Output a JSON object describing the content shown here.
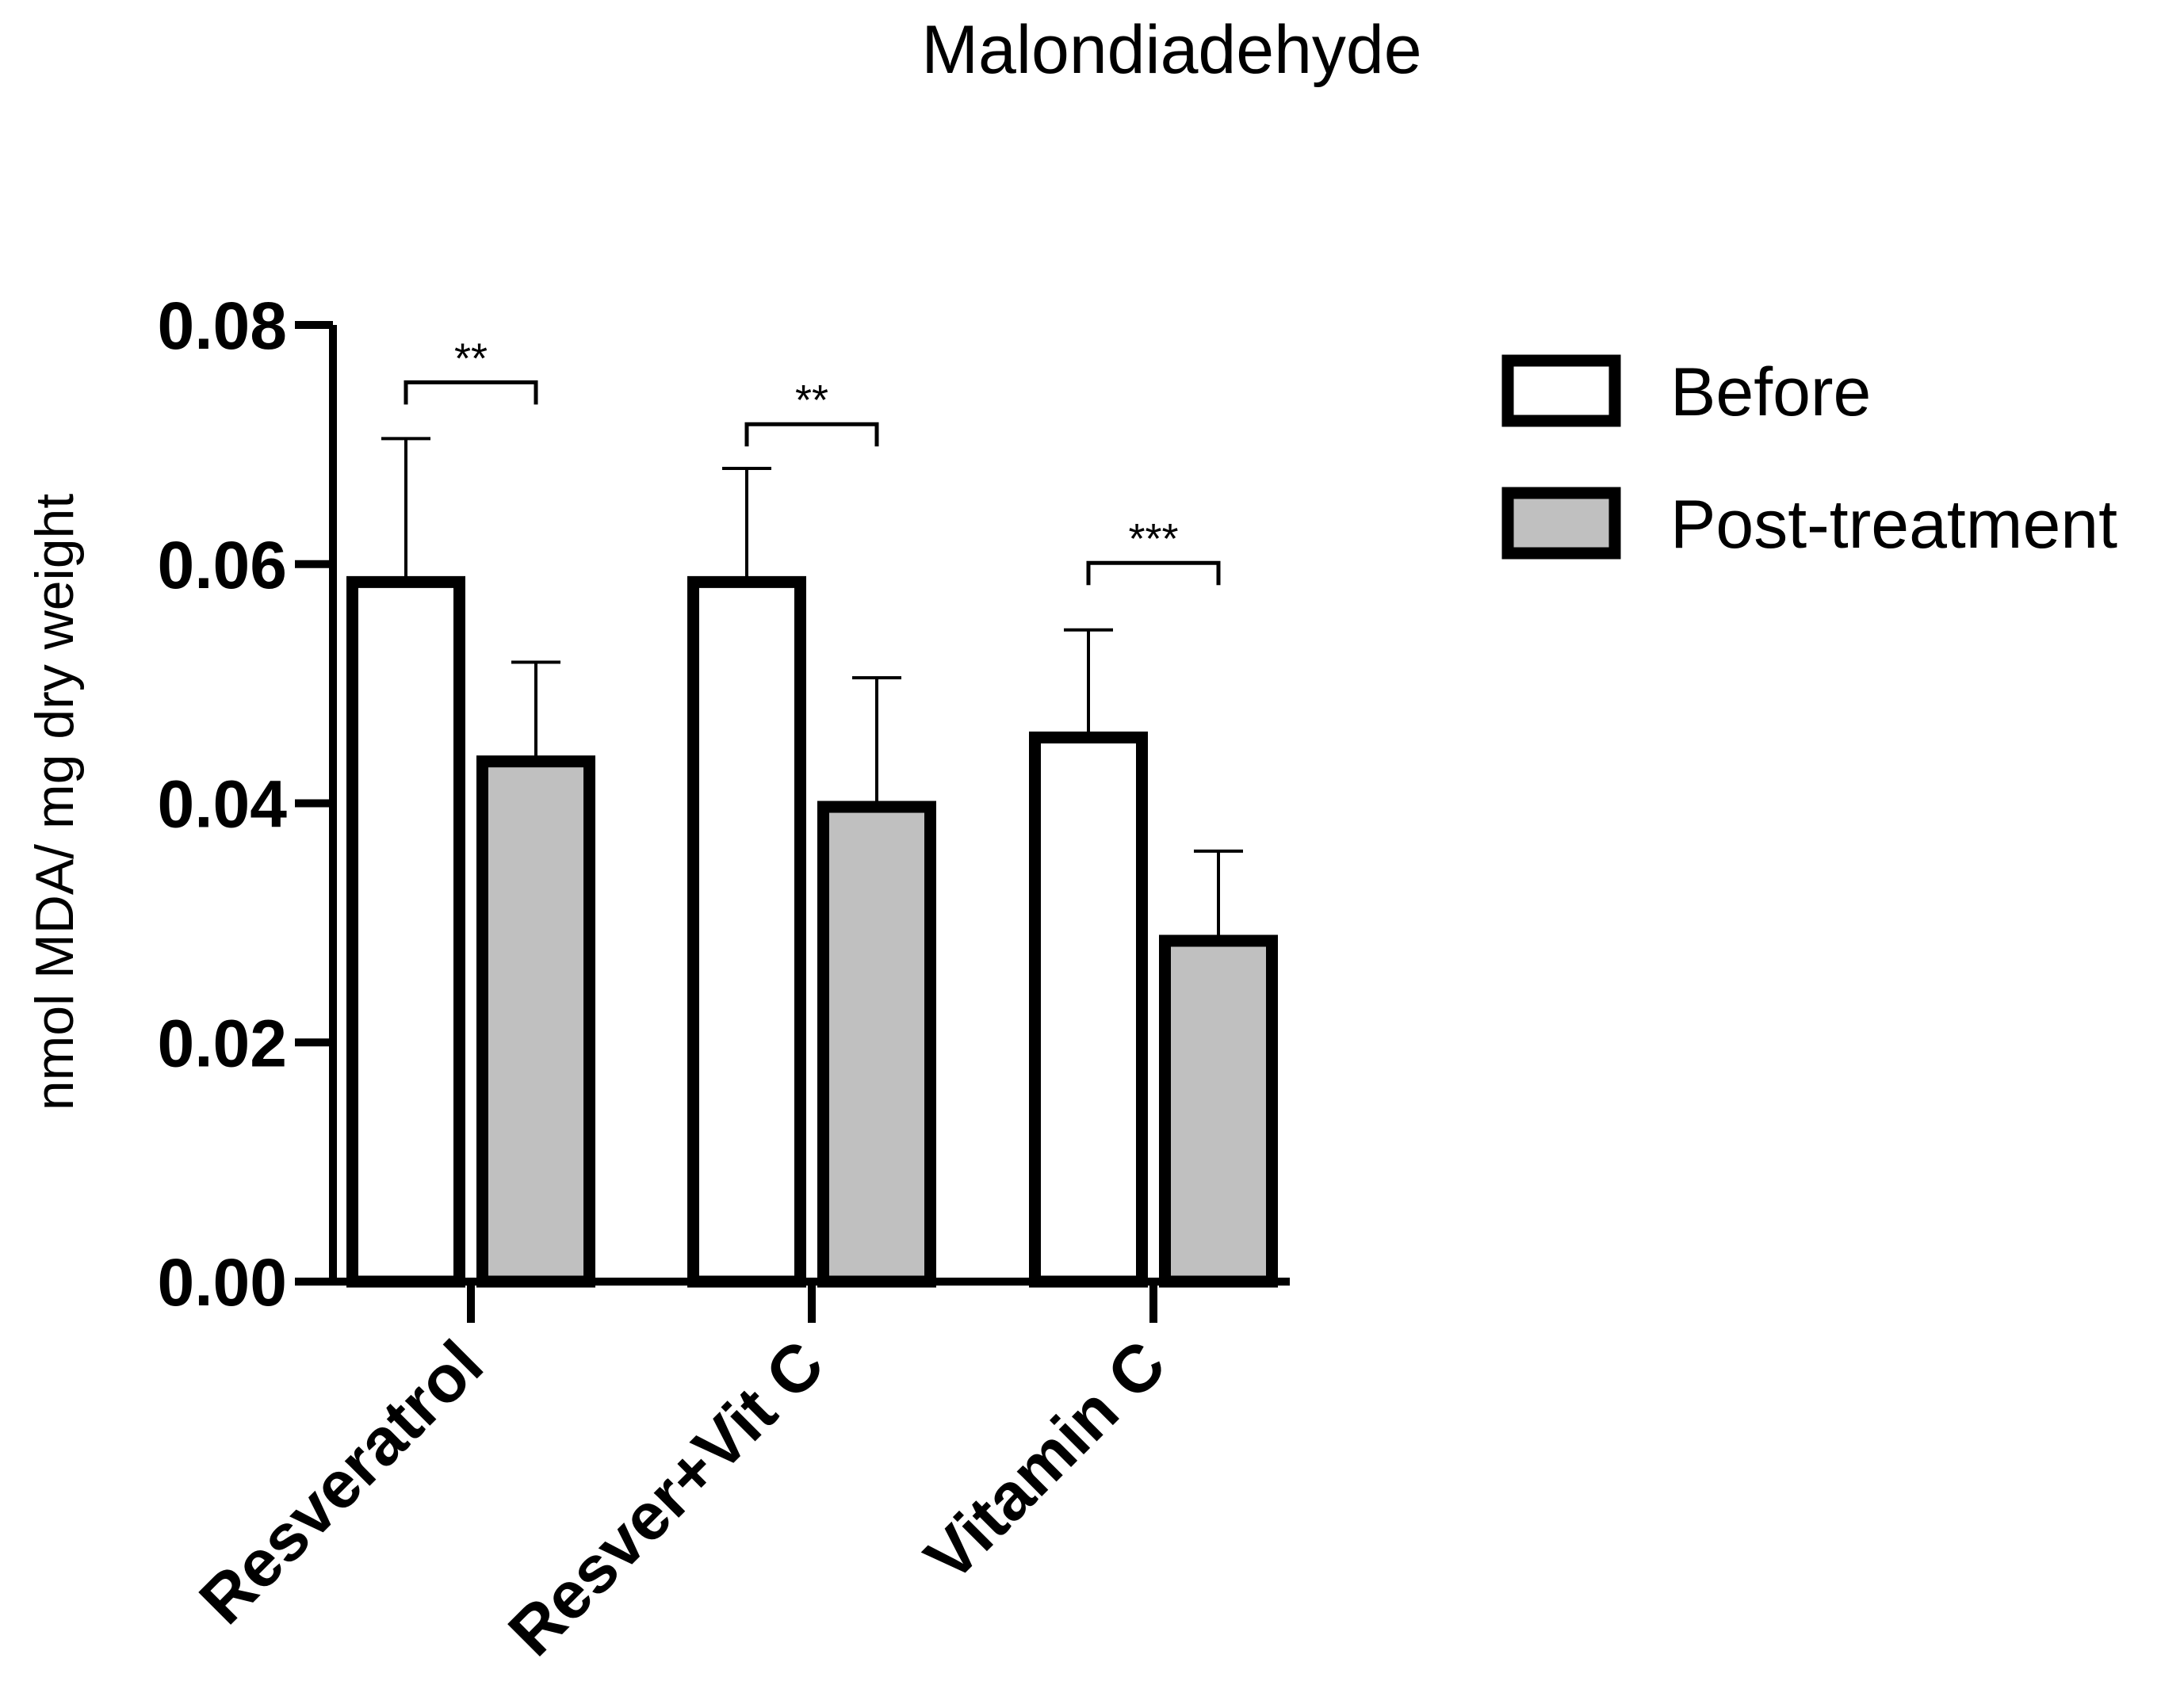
{
  "chart_data": {
    "type": "bar",
    "title": "Malondiadehyde",
    "xlabel": "",
    "ylabel": "nmol MDA/ mg dry weight",
    "ylim": [
      0,
      0.08
    ],
    "yticks": [
      0,
      0.02,
      0.04,
      0.06,
      0.08
    ],
    "ytick_labels": [
      "0.00",
      "0.02",
      "0.04",
      "0.06",
      "0.08"
    ],
    "categories": [
      "Resveratrol",
      "Resver+Vit C",
      "Vitamin C"
    ],
    "series": [
      {
        "name": "Before",
        "color": "#ffffff",
        "values": [
          0.0585,
          0.0585,
          0.0455
        ],
        "errors": [
          0.012,
          0.0095,
          0.009
        ]
      },
      {
        "name": "Post-treatment",
        "color": "#c0c0c0",
        "values": [
          0.0435,
          0.0397,
          0.0285
        ],
        "errors": [
          0.0083,
          0.0108,
          0.0075
        ]
      }
    ],
    "significance": [
      {
        "category": "Resveratrol",
        "label": "**",
        "y": 0.0752
      },
      {
        "category": "Resver+Vit C",
        "label": "**",
        "y": 0.0717
      },
      {
        "category": "Vitamin C",
        "label": "***",
        "y": 0.0601
      }
    ],
    "legend_position": "top-right",
    "grid": false
  }
}
